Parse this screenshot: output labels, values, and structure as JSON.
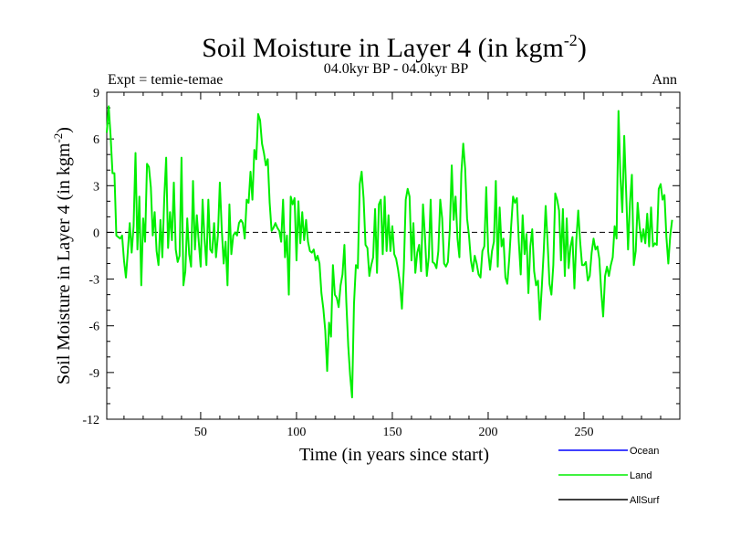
{
  "chart_data": {
    "type": "line",
    "title": "Soil Moisture in Layer 4 (in kgm",
    "title_sup": "-2",
    "title_end": ")",
    "expt_label": "Expt = temie-temae",
    "period_label": "04.0kyr BP - 04.0kyr BP",
    "season_label": "Ann",
    "xlabel": "Time (in years since start)",
    "ylabel": "Soil Moisture in Layer 4 (in kgm",
    "ylabel_sup": "-2",
    "ylabel_end": ")",
    "xlim": [
      1,
      300
    ],
    "ylim": [
      -12,
      9
    ],
    "xticks": [
      50,
      100,
      150,
      200,
      250
    ],
    "yticks": [
      9,
      6,
      3,
      0,
      -3,
      -6,
      -9,
      -12
    ],
    "ytick_labels": [
      "9",
      "6",
      "3",
      "0",
      "-3",
      "-6",
      "-9",
      "-12"
    ],
    "reference_line": 0,
    "legend": [
      {
        "name": "Ocean",
        "color": "#0000ff"
      },
      {
        "name": "Land",
        "color": "#00ee00"
      },
      {
        "name": "AllSurf",
        "color": "#000000"
      }
    ],
    "series": [
      {
        "name": "Land",
        "color": "#00ee00",
        "x_start": 1,
        "x_step": 1,
        "values": [
          6.4,
          8.1,
          6.2,
          3.8,
          3.8,
          -0.2,
          -0.3,
          -0.4,
          -0.2,
          -1.8,
          -2.9,
          -1.2,
          0.6,
          -1.3,
          0.4,
          5.1,
          -1.1,
          2.3,
          -3.4,
          0.9,
          -0.6,
          4.4,
          4.2,
          2.9,
          -0.2,
          1.3,
          -1.2,
          -2.1,
          0.8,
          -1.6,
          2.2,
          4.8,
          -1.0,
          1.3,
          -0.5,
          3.2,
          -1.1,
          -1.9,
          -1.5,
          4.8,
          -3.4,
          -2.5,
          0.9,
          -1.4,
          -2.2,
          3.3,
          -1.1,
          1.1,
          -0.6,
          -2.2,
          2.1,
          -0.4,
          -2.1,
          2.1,
          -1.1,
          -1.3,
          0.6,
          -1.6,
          -0.2,
          3.2,
          0.2,
          -2.0,
          -0.6,
          -3.4,
          1.8,
          -1.4,
          -0.2,
          0.0,
          -0.2,
          0.6,
          0.8,
          0.6,
          -0.4,
          2.1,
          1.9,
          3.9,
          2.1,
          5.3,
          4.7,
          7.6,
          7.2,
          5.7,
          5.1,
          4.3,
          4.7,
          1.9,
          0.1,
          0.3,
          0.6,
          0.3,
          0.1,
          -0.6,
          2.1,
          -1.6,
          -0.2,
          -4.0,
          2.3,
          1.8,
          2.2,
          -1.8,
          2.0,
          -0.7,
          1.3,
          -0.5,
          0.8,
          -0.6,
          -1.2,
          -1.3,
          -1.1,
          -1.8,
          -1.5,
          -2.0,
          -3.9,
          -4.9,
          -6.3,
          -8.9,
          -5.8,
          -6.7,
          -2.1,
          -4.0,
          -4.2,
          -4.8,
          -3.4,
          -2.7,
          -0.8,
          -4.5,
          -7.3,
          -9.2,
          -10.6,
          -4.6,
          -2.1,
          -2.3,
          3.1,
          3.9,
          2.2,
          -0.8,
          -1.0,
          -2.8,
          -2.1,
          -1.6,
          1.5,
          -2.6,
          1.8,
          2.1,
          -1.4,
          2.3,
          -1.2,
          1.1,
          -1.2,
          0.4,
          -1.4,
          -1.7,
          -2.4,
          -3.3,
          -4.9,
          -2.3,
          2.1,
          2.8,
          2.3,
          -1.8,
          0.6,
          -2.6,
          -1.3,
          -0.8,
          -2.5,
          1.8,
          -0.2,
          -2.8,
          -1.6,
          2.1,
          -1.9,
          -2.0,
          -2.3,
          -1.2,
          2.1,
          0.9,
          -2.0,
          -2.2,
          -1.9,
          0.2,
          4.3,
          0.8,
          2.3,
          -0.4,
          -1.6,
          3.8,
          5.7,
          4.1,
          0.9,
          -0.2,
          -1.8,
          -2.5,
          -1.5,
          -2.0,
          -2.7,
          -2.9,
          -1.2,
          -0.9,
          2.9,
          -1.2,
          -2.4,
          -1.2,
          -0.6,
          3.3,
          -2.2,
          1.6,
          -0.9,
          -0.4,
          -2.9,
          -3.3,
          -1.7,
          0.4,
          2.3,
          1.9,
          2.2,
          -0.6,
          -2.7,
          1.1,
          -1.4,
          -0.1,
          -3.9,
          -0.9,
          0.2,
          -2.5,
          -3.4,
          -3.1,
          -5.6,
          -3.5,
          -1.2,
          1.7,
          -0.6,
          -3.3,
          -4.0,
          -2.1,
          2.5,
          2.1,
          1.4,
          -1.8,
          1.5,
          -2.8,
          0.9,
          -2.3,
          -0.9,
          -0.3,
          -3.6,
          -0.5,
          1.4,
          -0.6,
          -2.1,
          -2.1,
          -1.9,
          -3.1,
          -2.8,
          -1.3,
          -0.4,
          -1.1,
          -0.9,
          -1.7,
          -3.8,
          -5.4,
          -2.8,
          -2.2,
          -2.8,
          -2.1,
          -1.6,
          0.4,
          -0.4,
          7.8,
          3.6,
          1.3,
          6.2,
          2.6,
          -1.1,
          1.9,
          3.7,
          -2.1,
          -1.2,
          1.9,
          0.4,
          -0.6,
          0.2,
          -0.7,
          1.2,
          -0.9,
          1.6,
          -0.9,
          -0.7,
          -0.8,
          2.8,
          3.1,
          2.1,
          2.4,
          -0.3,
          -2.0,
          -0.2,
          0.8
        ]
      }
    ]
  }
}
